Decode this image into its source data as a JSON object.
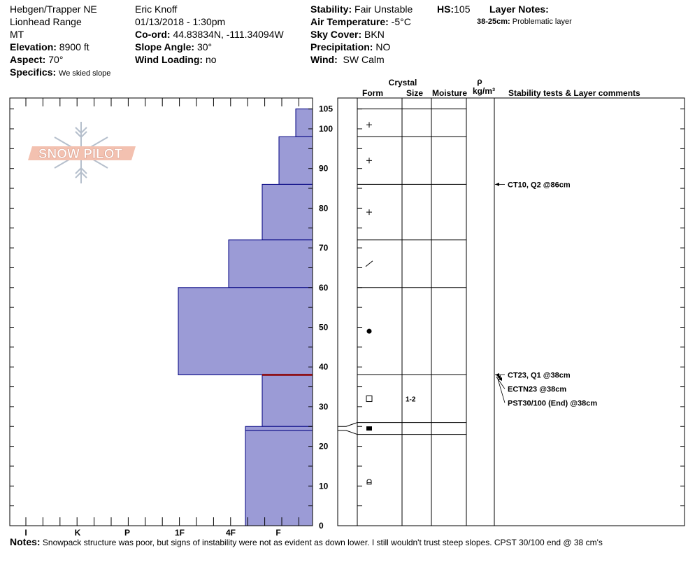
{
  "header": {
    "location": "Hebgen/Trapper NE",
    "range": "Lionhead Range",
    "state": "MT",
    "elevation_label": "Elevation:",
    "elevation": "8900 ft",
    "aspect_label": "Aspect:",
    "aspect": "70°",
    "specifics_label": "Specifics:",
    "specifics": "We skied slope",
    "observer": "Eric Knoff",
    "datetime": "01/13/2018 - 1:30pm",
    "coord_label": "Co-ord:",
    "coord": "44.83834N, -111.34094W",
    "slope_label": "Slope Angle:",
    "slope": "30°",
    "wind_loading_label": "Wind Loading:",
    "wind_loading": "no",
    "stability_label": "Stability:",
    "stability": "Fair Unstable",
    "air_temp_label": "Air Temperature:",
    "air_temp": "-5°C",
    "sky_label": "Sky Cover:",
    "sky": "BKN",
    "precip_label": "Precipitation:",
    "precip": "NO",
    "wind_label": "Wind:",
    "wind": "SW Calm",
    "hs_label": "HS:",
    "hs": "105",
    "layer_notes_label": "Layer Notes:",
    "layer_note_range": "38-25cm:",
    "layer_note_text": "Problematic layer"
  },
  "logo_text": "SNOW PILOT",
  "columns": {
    "crystal": "Crystal",
    "form": "Form",
    "size": "Size",
    "moisture": "Moisture",
    "rho": "ρ",
    "density_unit": "kg/m³",
    "stability_tests": "Stability tests & Layer comments"
  },
  "notes_label": "Notes:",
  "notes": "Snowpack structure was poor, but signs of instability were not as evident as down lower. I still wouldn't trust steep slopes. CPST 30/100 end @ 38 cm's",
  "colors": {
    "hardness_fill": "#9b9bd6",
    "hardness_edge": "#000080",
    "critical_line": "#8b0000"
  },
  "chart_data": {
    "type": "snow-profile",
    "hardness_scale": [
      "I",
      "K",
      "P",
      "1F",
      "4F",
      "F"
    ],
    "depth_range_cm": [
      0,
      105
    ],
    "depth_ticks": [
      0,
      10,
      20,
      30,
      40,
      50,
      60,
      70,
      80,
      90,
      100,
      105
    ],
    "hardness_layers": [
      {
        "top": 105,
        "bottom": 98,
        "hardness": "F-"
      },
      {
        "top": 98,
        "bottom": 86,
        "hardness": "F"
      },
      {
        "top": 86,
        "bottom": 72,
        "hardness": "F+"
      },
      {
        "top": 72,
        "bottom": 60,
        "hardness": "4F"
      },
      {
        "top": 60,
        "bottom": 38,
        "hardness": "1F+"
      },
      {
        "top": 38,
        "bottom": 25,
        "hardness": "F+"
      },
      {
        "top": 25,
        "bottom": 24,
        "hardness": "4F-"
      },
      {
        "top": 24,
        "bottom": 0,
        "hardness": "4F-"
      }
    ],
    "layer_boundaries": [
      105,
      98,
      86,
      72,
      60,
      38,
      26,
      23
    ],
    "critical_layer_cm": 38,
    "crystal_forms": [
      {
        "depth": 101,
        "form": "+"
      },
      {
        "depth": 92,
        "form": "+"
      },
      {
        "depth": 79,
        "form": "+"
      },
      {
        "depth": 66,
        "form": "/"
      },
      {
        "depth": 49,
        "form": "●"
      },
      {
        "depth": 32,
        "form": "□",
        "size": "1-2"
      },
      {
        "depth": 24.5,
        "form": "■"
      },
      {
        "depth": 11,
        "form": "∩"
      }
    ],
    "stability_tests": [
      {
        "depth": 86,
        "text": "CT10, Q2 @86cm"
      },
      {
        "depth": 38,
        "text": "CT23, Q1 @38cm"
      },
      {
        "depth": 38,
        "text": "ECTN23 @38cm"
      },
      {
        "depth": 38,
        "text": "PST30/100 (End) @38cm"
      }
    ]
  }
}
